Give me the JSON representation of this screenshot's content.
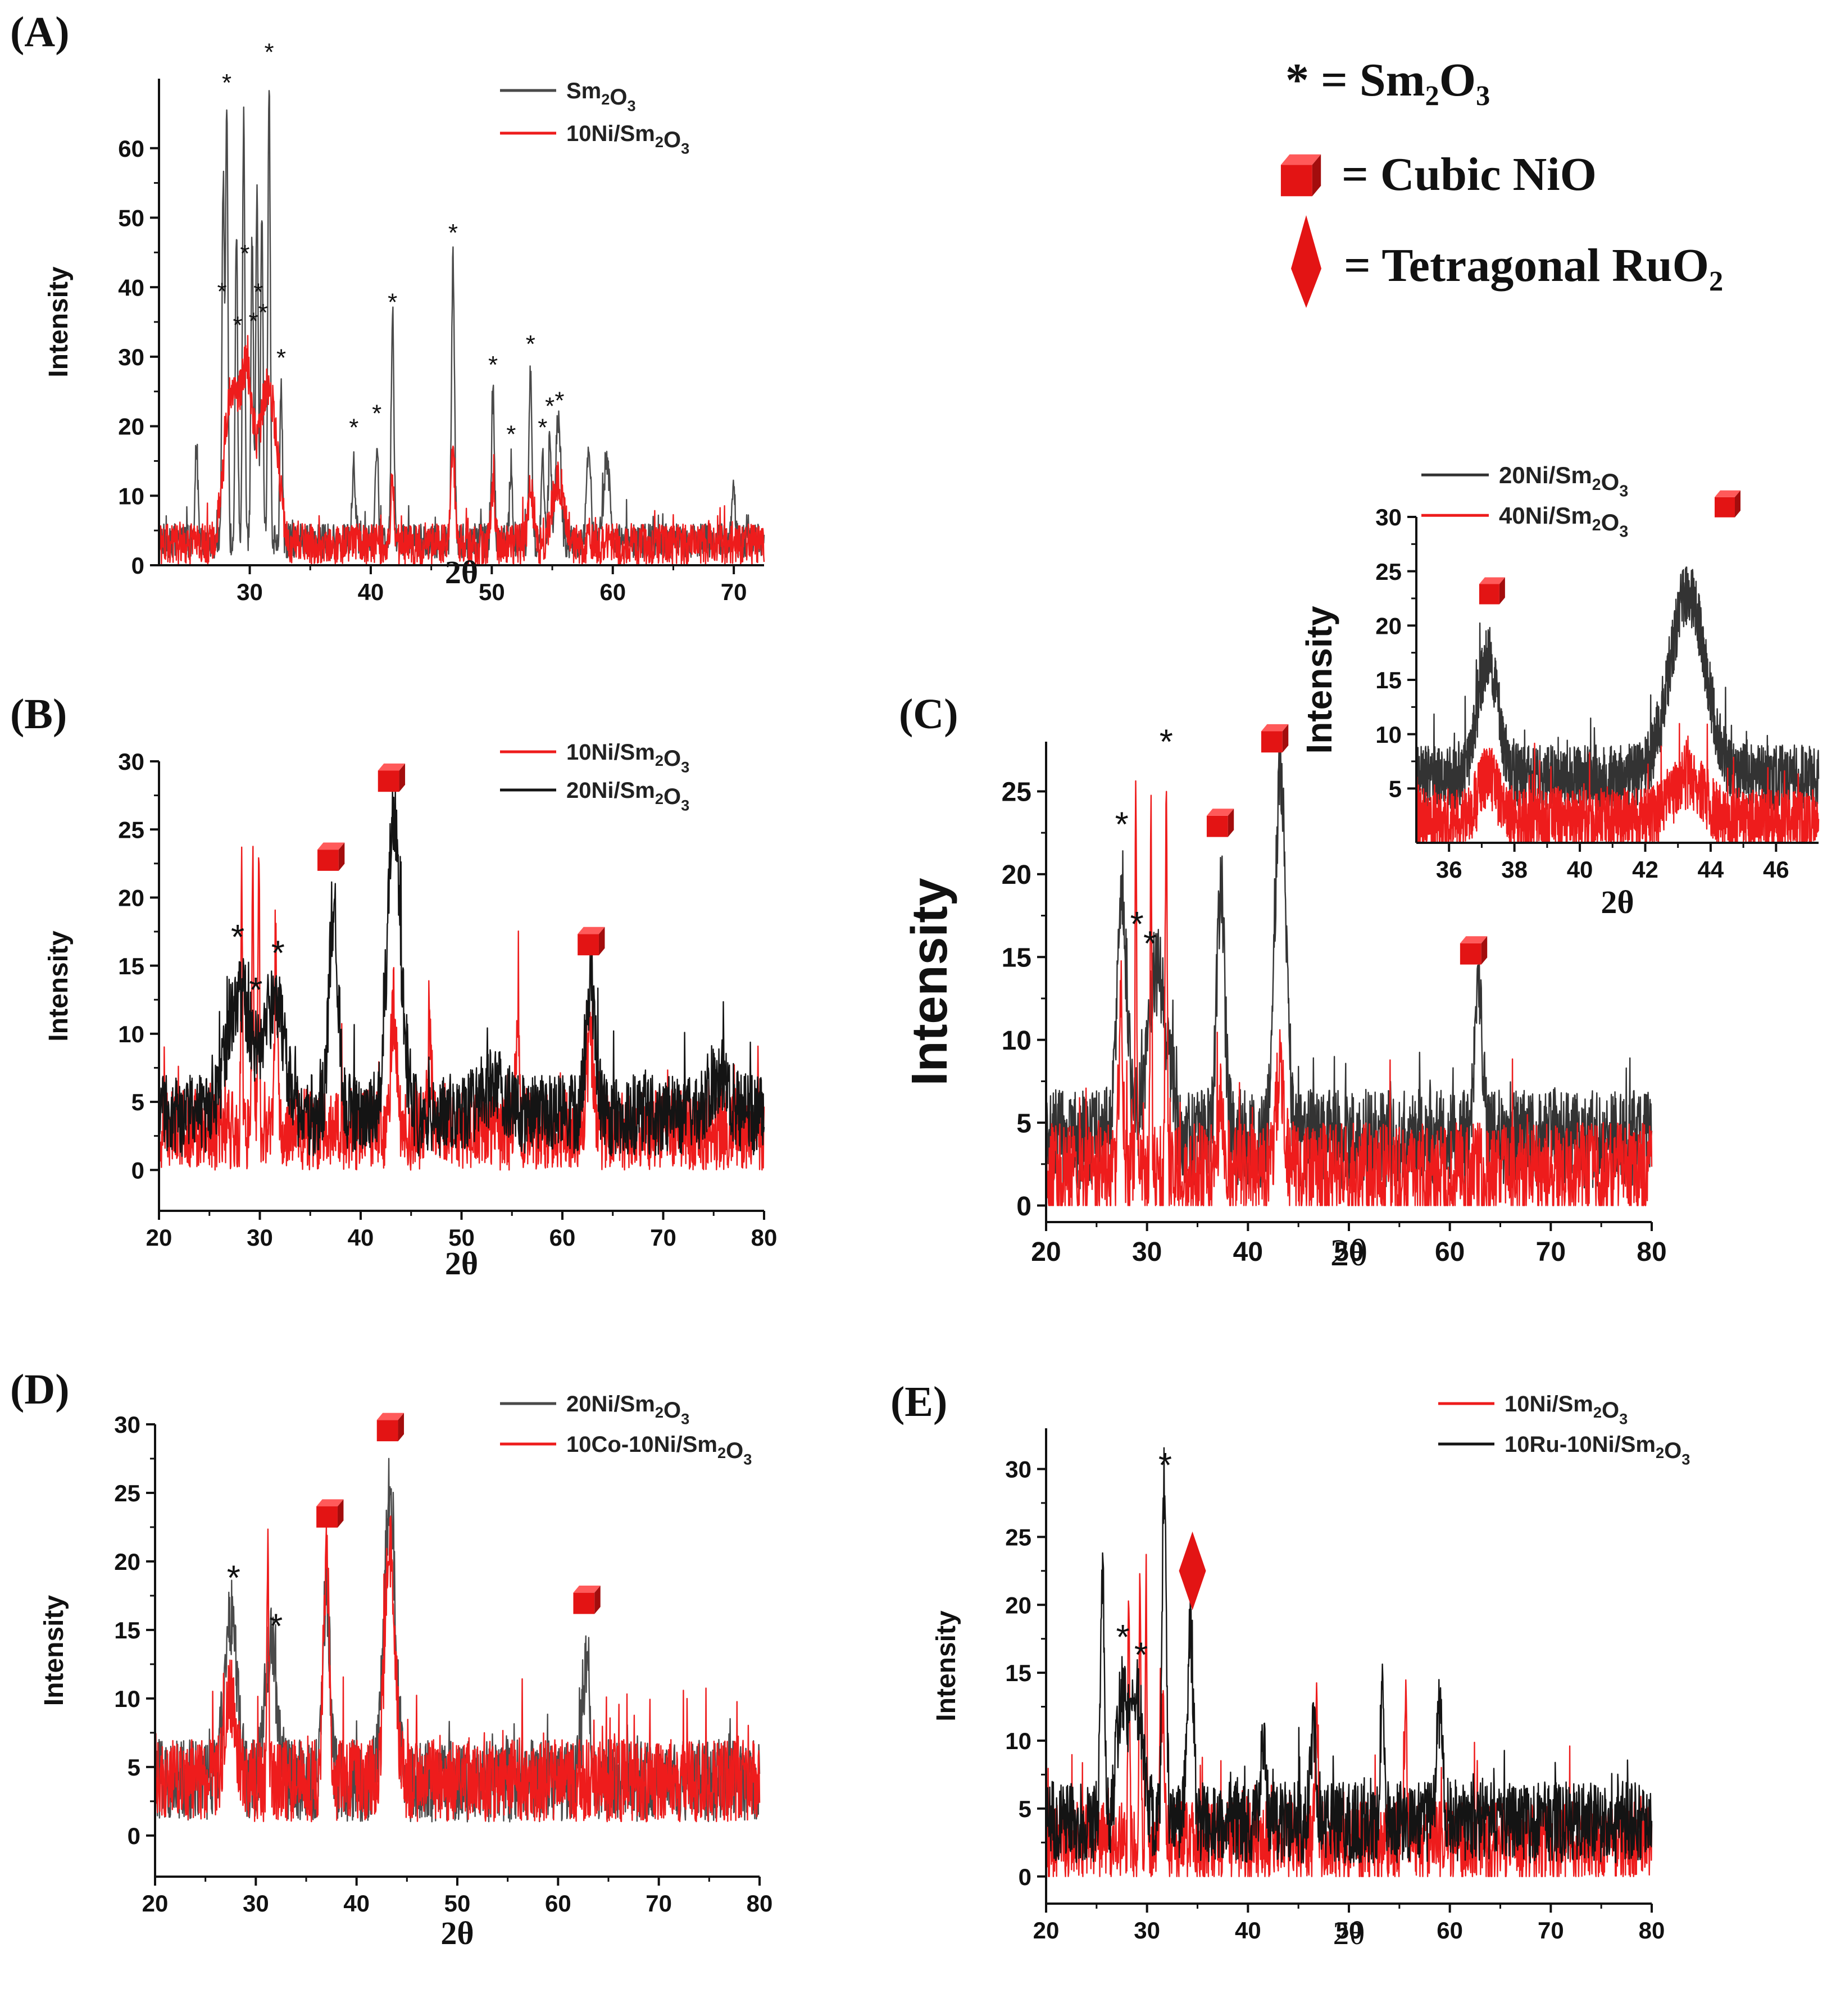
{
  "legend_key": {
    "sm2o3": "* = Sm₂O₃",
    "nio": "= Cubic NiO",
    "ruo2": "= Tetragonal RuO₂"
  },
  "colors": {
    "red": "#ee1c1c",
    "black": "#141414",
    "gray": "#4a4a4a"
  },
  "chart_data": [
    {
      "id": "A",
      "panel_label": "(A)",
      "type": "line",
      "xlabel": "2θ",
      "ylabel": "Intensity",
      "xlim": [
        22.5,
        72.5
      ],
      "ylim": [
        0,
        70
      ],
      "xticks": [
        30,
        40,
        50,
        60,
        70
      ],
      "yticks": [
        0,
        10,
        20,
        30,
        40,
        50,
        60
      ],
      "series": [
        {
          "name": "Sm₂O₃",
          "color": "#4a4a4a",
          "baseline": 3.5,
          "noise": 2.5,
          "peaks": [
            [
              25.6,
              14,
              0.12
            ],
            [
              27.8,
              52,
              0.1
            ],
            [
              28.1,
              61,
              0.1
            ],
            [
              28.9,
              44,
              0.1
            ],
            [
              29.5,
              61,
              0.1
            ],
            [
              30.2,
              44,
              0.1
            ],
            [
              30.6,
              51,
              0.1
            ],
            [
              31.0,
              47,
              0.1
            ],
            [
              31.6,
              66,
              0.1
            ],
            [
              32.6,
              22,
              0.1
            ],
            [
              38.6,
              12,
              0.12
            ],
            [
              40.5,
              14,
              0.12
            ],
            [
              41.8,
              30,
              0.12
            ],
            [
              46.8,
              40,
              0.12
            ],
            [
              50.1,
              21,
              0.12
            ],
            [
              51.6,
              11,
              0.12
            ],
            [
              53.2,
              24,
              0.12
            ],
            [
              54.2,
              12,
              0.12
            ],
            [
              54.8,
              15,
              0.12
            ],
            [
              55.5,
              18,
              0.2
            ],
            [
              58.0,
              14,
              0.15
            ],
            [
              59.5,
              12,
              0.25
            ],
            [
              70.0,
              8,
              0.12
            ]
          ]
        },
        {
          "name": "10Ni/Sm₂O₃",
          "color": "#ee1c1c",
          "baseline": 3,
          "noise": 3,
          "peaks": [
            [
              28.5,
              22,
              0.6
            ],
            [
              29.8,
              23,
              0.5
            ],
            [
              31.2,
              17,
              0.5
            ],
            [
              32.0,
              14,
              0.5
            ],
            [
              41.8,
              9,
              0.15
            ],
            [
              46.8,
              14,
              0.15
            ],
            [
              50.1,
              8,
              0.15
            ],
            [
              53.2,
              9,
              0.2
            ],
            [
              55.5,
              9,
              0.5
            ]
          ]
        }
      ],
      "sm_markers": [
        [
          27.7,
          "*"
        ],
        [
          28.1,
          "*"
        ],
        [
          29.0,
          "*"
        ],
        [
          29.6,
          "*"
        ],
        [
          30.3,
          "*"
        ],
        [
          30.7,
          "*"
        ],
        [
          31.1,
          "*"
        ],
        [
          31.6,
          "*"
        ],
        [
          32.6,
          "*"
        ],
        [
          38.6,
          "*"
        ],
        [
          40.5,
          "*"
        ],
        [
          41.8,
          "*"
        ],
        [
          46.8,
          "*"
        ],
        [
          50.1,
          "*"
        ],
        [
          51.6,
          "*"
        ],
        [
          53.2,
          "*"
        ],
        [
          54.2,
          "*"
        ],
        [
          54.8,
          "*"
        ],
        [
          55.6,
          "*"
        ]
      ],
      "nio_markers": [],
      "ruo2_markers": [],
      "legend": {
        "placement": "top-right",
        "entries": [
          [
            "Sm₂O₃",
            "#4a4a4a"
          ],
          [
            "10Ni/Sm₂O₃",
            "#ee1c1c"
          ]
        ]
      }
    },
    {
      "id": "B",
      "panel_label": "(B)",
      "type": "line",
      "xlabel": "2θ",
      "ylabel": "Intensity",
      "xlim": [
        20,
        80
      ],
      "ylim": [
        -3,
        30
      ],
      "xticks": [
        20,
        30,
        40,
        50,
        60,
        70,
        80
      ],
      "yticks": [
        0,
        5,
        10,
        15,
        20,
        25,
        30
      ],
      "series": [
        {
          "name": "10Ni/Sm₂O₃",
          "color": "#ee1c1c",
          "baseline": 3,
          "noise": 3,
          "peaks": [
            [
              28.2,
              20,
              0.08
            ],
            [
              29.3,
              21,
              0.08
            ],
            [
              29.9,
              21,
              0.08
            ],
            [
              31.6,
              12,
              0.15
            ],
            [
              43.3,
              9,
              0.3
            ],
            [
              46.8,
              9,
              0.15
            ],
            [
              55.6,
              9,
              0.15
            ],
            [
              62.8,
              6,
              0.3
            ]
          ]
        },
        {
          "name": "20Ni/Sm₂O₃",
          "color": "#141414",
          "baseline": 4,
          "noise": 3,
          "peaks": [
            [
              28.0,
              9,
              1.2
            ],
            [
              31.5,
              8,
              1.0
            ],
            [
              37.3,
              15,
              0.45
            ],
            [
              43.3,
              22,
              0.65
            ],
            [
              62.8,
              9,
              0.5
            ],
            [
              53,
              2,
              1.5
            ],
            [
              75.5,
              3,
              1.0
            ]
          ]
        }
      ],
      "sm_markers": [
        [
          27.8,
          "*"
        ],
        [
          29.6,
          "*"
        ],
        [
          31.8,
          "*"
        ]
      ],
      "nio_markers": [
        [
          37.0,
          23
        ],
        [
          43.0,
          28.8
        ],
        [
          62.8,
          16.8
        ]
      ],
      "ruo2_markers": [],
      "legend": {
        "placement": "top-right",
        "entries": [
          [
            "10Ni/Sm₂O₃",
            "#ee1c1c"
          ],
          [
            "20Ni/Sm₂O₃",
            "#141414"
          ]
        ]
      }
    },
    {
      "id": "C",
      "panel_label": "(C)",
      "type": "line",
      "xlabel": "2θ",
      "ylabel": "Intensity",
      "xlim": [
        20,
        80
      ],
      "ylim": [
        -1,
        28
      ],
      "xticks": [
        20,
        30,
        40,
        50,
        60,
        70,
        80
      ],
      "yticks": [
        0,
        5,
        10,
        15,
        20,
        25
      ],
      "series": [
        {
          "name": "20Ni/Sm₂O₃",
          "color": "#333333",
          "baseline": 4,
          "noise": 3,
          "peaks": [
            [
              27.5,
              15,
              0.5
            ],
            [
              31.0,
              10,
              1.0
            ],
            [
              37.3,
              15,
              0.4
            ],
            [
              43.2,
              22,
              0.55
            ],
            [
              62.8,
              9,
              0.4
            ]
          ]
        },
        {
          "name": "40Ni/Sm₂O₃",
          "color": "#ee1c1c",
          "baseline": 2,
          "noise": 3,
          "peaks": [
            [
              28.9,
              24,
              0.08
            ],
            [
              30.4,
              20,
              0.08
            ],
            [
              31.9,
              22,
              0.1
            ],
            [
              27.4,
              10,
              0.2
            ],
            [
              43.2,
              6,
              0.4
            ],
            [
              37.3,
              4,
              0.3
            ]
          ]
        }
      ],
      "sm_markers": [
        [
          27.5,
          "*"
        ],
        [
          29.0,
          "*"
        ],
        [
          30.3,
          "*"
        ],
        [
          31.9,
          "*"
        ]
      ],
      "nio_markers": [
        [
          37.2,
          23.1
        ],
        [
          42.6,
          28.2
        ],
        [
          62.3,
          15.4
        ]
      ],
      "ruo2_markers": [],
      "legend": null
    },
    {
      "id": "C_inset",
      "panel_label": "",
      "type": "line",
      "xlabel": "2θ",
      "ylabel": "Intensity",
      "xlim": [
        35,
        47.3
      ],
      "ylim": [
        0,
        30
      ],
      "xticks": [
        36,
        38,
        40,
        42,
        44,
        46
      ],
      "yticks": [
        5,
        10,
        15,
        20,
        25,
        30
      ],
      "series": [
        {
          "name": "20Ni/Sm₂O₃",
          "color": "#333333",
          "baseline": 6,
          "noise": 3,
          "peaks": [
            [
              37.2,
              11,
              0.3
            ],
            [
              43.3,
              17,
              0.55
            ]
          ]
        },
        {
          "name": "40Ni/Sm₂O₃",
          "color": "#ee1c1c",
          "baseline": 2,
          "noise": 3,
          "peaks": [
            [
              37.2,
              4,
              0.3
            ],
            [
              43.3,
              4,
              0.5
            ]
          ]
        }
      ],
      "sm_markers": [],
      "nio_markers": [
        [
          37.3,
          23.2
        ],
        [
          44.5,
          31.2
        ]
      ],
      "ruo2_markers": [],
      "legend": {
        "placement": "top",
        "entries": [
          [
            "20Ni/Sm₂O₃",
            "#333333"
          ],
          [
            "40Ni/Sm₂O₃",
            "#ee1c1c"
          ]
        ]
      }
    },
    {
      "id": "D",
      "panel_label": "(D)",
      "type": "line",
      "xlabel": "2θ",
      "ylabel": "Intensity",
      "xlim": [
        20,
        80
      ],
      "ylim": [
        -3,
        30
      ],
      "xticks": [
        20,
        30,
        40,
        50,
        60,
        70,
        80
      ],
      "yticks": [
        0,
        5,
        10,
        15,
        20,
        25,
        30
      ],
      "series": [
        {
          "name": "20Ni/Sm₂O₃",
          "color": "#4a4a4a",
          "baseline": 4,
          "noise": 3,
          "peaks": [
            [
              27.5,
              12,
              0.6
            ],
            [
              31.5,
              10,
              0.6
            ],
            [
              37.0,
              14,
              0.35
            ],
            [
              43.3,
              21,
              0.55
            ],
            [
              62.8,
              8,
              0.4
            ]
          ]
        },
        {
          "name": "10Co-10Ni/Sm₂O₃",
          "color": "#ee1c1c",
          "baseline": 4,
          "noise": 3,
          "peaks": [
            [
              31.2,
              16,
              0.1
            ],
            [
              37.0,
              16,
              0.3
            ],
            [
              43.3,
              17,
              0.5
            ],
            [
              27.5,
              6,
              0.5
            ]
          ]
        }
      ],
      "sm_markers": [
        [
          27.8,
          "*"
        ],
        [
          32.0,
          "*"
        ]
      ],
      "nio_markers": [
        [
          37.3,
          23.5
        ],
        [
          43.3,
          29.8
        ],
        [
          62.8,
          17.2
        ]
      ],
      "ruo2_markers": [],
      "legend": {
        "placement": "top-right",
        "entries": [
          [
            "20Ni/Sm₂O₃",
            "#4a4a4a"
          ],
          [
            "10Co-10Ni/Sm₂O₃",
            "#ee1c1c"
          ]
        ]
      }
    },
    {
      "id": "E",
      "panel_label": "(E)",
      "type": "line",
      "xlabel": "2θ",
      "ylabel": "Intensity",
      "xlim": [
        20,
        80
      ],
      "ylim": [
        -2,
        33
      ],
      "xticks": [
        20,
        30,
        40,
        50,
        60,
        70,
        80
      ],
      "yticks": [
        0,
        5,
        10,
        15,
        20,
        25,
        30
      ],
      "series": [
        {
          "name": "10Ni/Sm₂O₃",
          "color": "#ee1c1c",
          "baseline": 2.5,
          "noise": 3,
          "peaks": [
            [
              28.2,
              20,
              0.08
            ],
            [
              29.3,
              21,
              0.08
            ],
            [
              29.9,
              20,
              0.08
            ],
            [
              31.5,
              10,
              0.2
            ],
            [
              46.8,
              10,
              0.15
            ],
            [
              55.6,
              10,
              0.15
            ]
          ]
        },
        {
          "name": "10Ru-10Ni/Sm₂O₃",
          "color": "#141414",
          "baseline": 4,
          "noise": 3,
          "peaks": [
            [
              25.6,
              17,
              0.2
            ],
            [
              27.5,
              9,
              0.5
            ],
            [
              29.0,
              9,
              0.6
            ],
            [
              31.7,
              25,
              0.2
            ],
            [
              34.3,
              14,
              0.3
            ],
            [
              41.5,
              5,
              0.3
            ],
            [
              46.5,
              6,
              0.3
            ],
            [
              53.3,
              9,
              0.2
            ],
            [
              59.0,
              8,
              0.3
            ]
          ]
        }
      ],
      "sm_markers": [
        [
          27.6,
          "*"
        ],
        [
          29.4,
          "*"
        ],
        [
          31.8,
          "*"
        ]
      ],
      "nio_markers": [],
      "ruo2_markers": [
        [
          34.5,
          22.5
        ]
      ],
      "legend": {
        "placement": "top-right",
        "entries": [
          [
            "10Ni/Sm₂O₃",
            "#ee1c1c"
          ],
          [
            "10Ru-10Ni/Sm₂O₃",
            "#141414"
          ]
        ]
      }
    }
  ]
}
